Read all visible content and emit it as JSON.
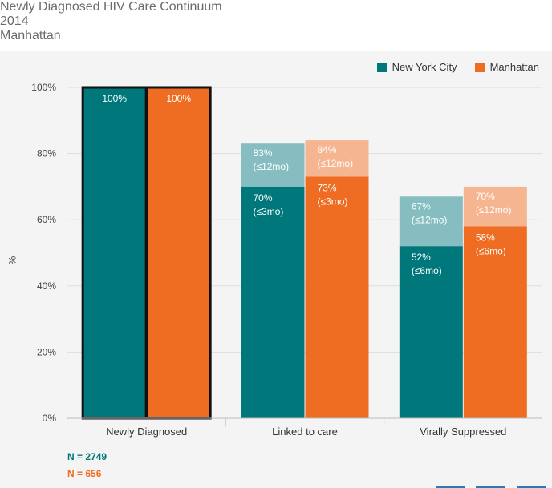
{
  "titles": {
    "line1": "Newly Diagnosed HIV Care Continuum",
    "line2": "2014",
    "line3": "Manhattan"
  },
  "legend": [
    {
      "label": "New York City",
      "color": "#00777a"
    },
    {
      "label": "Manhattan",
      "color": "#ee6d22"
    }
  ],
  "ylabel": "%",
  "n_labels": [
    {
      "text": "N = 2749",
      "color": "#00777a"
    },
    {
      "text": "N = 656",
      "color": "#ee6d22"
    }
  ],
  "chart_data": {
    "type": "bar",
    "stacked": true,
    "categories": [
      "Newly Diagnosed",
      "Linked to care",
      "Virally Suppressed"
    ],
    "ylim": [
      0,
      100
    ],
    "yticks": [
      0,
      20,
      40,
      60,
      80,
      100
    ],
    "ytick_labels": [
      "0%",
      "20%",
      "40%",
      "60%",
      "80%",
      "100%"
    ],
    "ylabel": "%",
    "legend_position": "top-right",
    "colors": {
      "nyc_main": "#00777a",
      "nyc_light": "#85bdc0",
      "mn_main": "#ee6d22",
      "mn_light": "#f5b591"
    },
    "series": [
      {
        "name": "New York City",
        "bars": [
          {
            "base": 100,
            "base_label": [
              "100%"
            ],
            "top": null,
            "top_label": null,
            "outlined": true
          },
          {
            "base": 70,
            "base_label": [
              "70%",
              "(≤3mo)"
            ],
            "top": 83,
            "top_label": [
              "83%",
              "(≤12mo)"
            ],
            "outlined": false
          },
          {
            "base": 52,
            "base_label": [
              "52%",
              "(≤6mo)"
            ],
            "top": 67,
            "top_label": [
              "67%",
              "(≤12mo)"
            ],
            "outlined": false
          }
        ]
      },
      {
        "name": "Manhattan",
        "bars": [
          {
            "base": 100,
            "base_label": [
              "100%"
            ],
            "top": null,
            "top_label": null,
            "outlined": true
          },
          {
            "base": 73,
            "base_label": [
              "73%",
              "(≤3mo)"
            ],
            "top": 84,
            "top_label": [
              "84%",
              "(≤12mo)"
            ],
            "outlined": false
          },
          {
            "base": 58,
            "base_label": [
              "58%",
              "(≤6mo)"
            ],
            "top": 70,
            "top_label": [
              "70%",
              "(≤12mo)"
            ],
            "outlined": false
          }
        ]
      }
    ]
  }
}
